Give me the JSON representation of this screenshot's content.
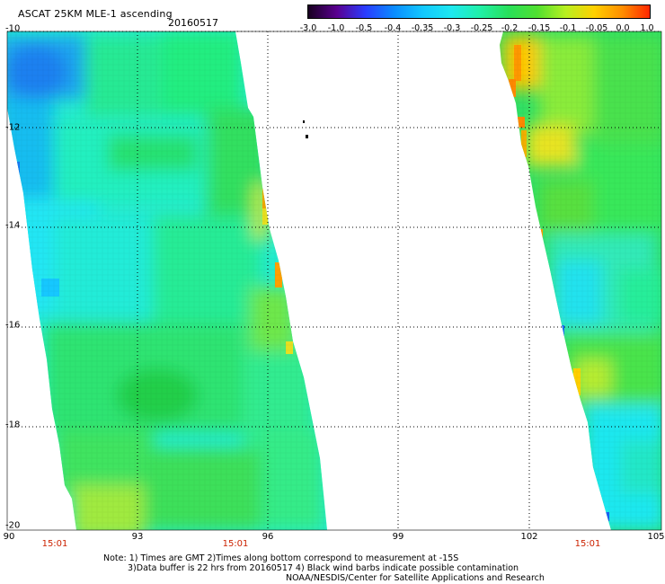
{
  "header": {
    "title": "ASCAT 25KM MLE-1 ascending",
    "date": "20160517"
  },
  "colorbar": {
    "ticks": [
      "-3.0",
      "-1.0",
      "-0.5",
      "-0.4",
      "-0.35",
      "-0.3",
      "-0.25",
      "-0.2",
      "-0.15",
      "-0.1",
      "-0.05",
      "0.0",
      "1.0"
    ],
    "colors": [
      "#180020",
      "#5a0090",
      "#2a3cff",
      "#0a8cff",
      "#12c8ff",
      "#1ee8f0",
      "#20f0a8",
      "#28e05a",
      "#50e030",
      "#b8f020",
      "#ffd000",
      "#ff8c00",
      "#ff2000"
    ]
  },
  "map": {
    "lat_labels": [
      "-10",
      "-12",
      "-14",
      "-16",
      "-18",
      "-20"
    ],
    "lon_labels": [
      "90",
      "93",
      "96",
      "99",
      "102",
      "105"
    ],
    "time_labels": [
      "15:01",
      "15:01",
      "15:01"
    ]
  },
  "footer": {
    "line1": "Note: 1) Times are GMT 2)Times along bottom correspond to measurement at -15S",
    "line2": "3)Data buffer is 22 hrs from 20160517 4) Black wind barbs indicate possible contamination",
    "line3": "NOAA/NESDIS/Center for Satellite Applications and Research"
  }
}
